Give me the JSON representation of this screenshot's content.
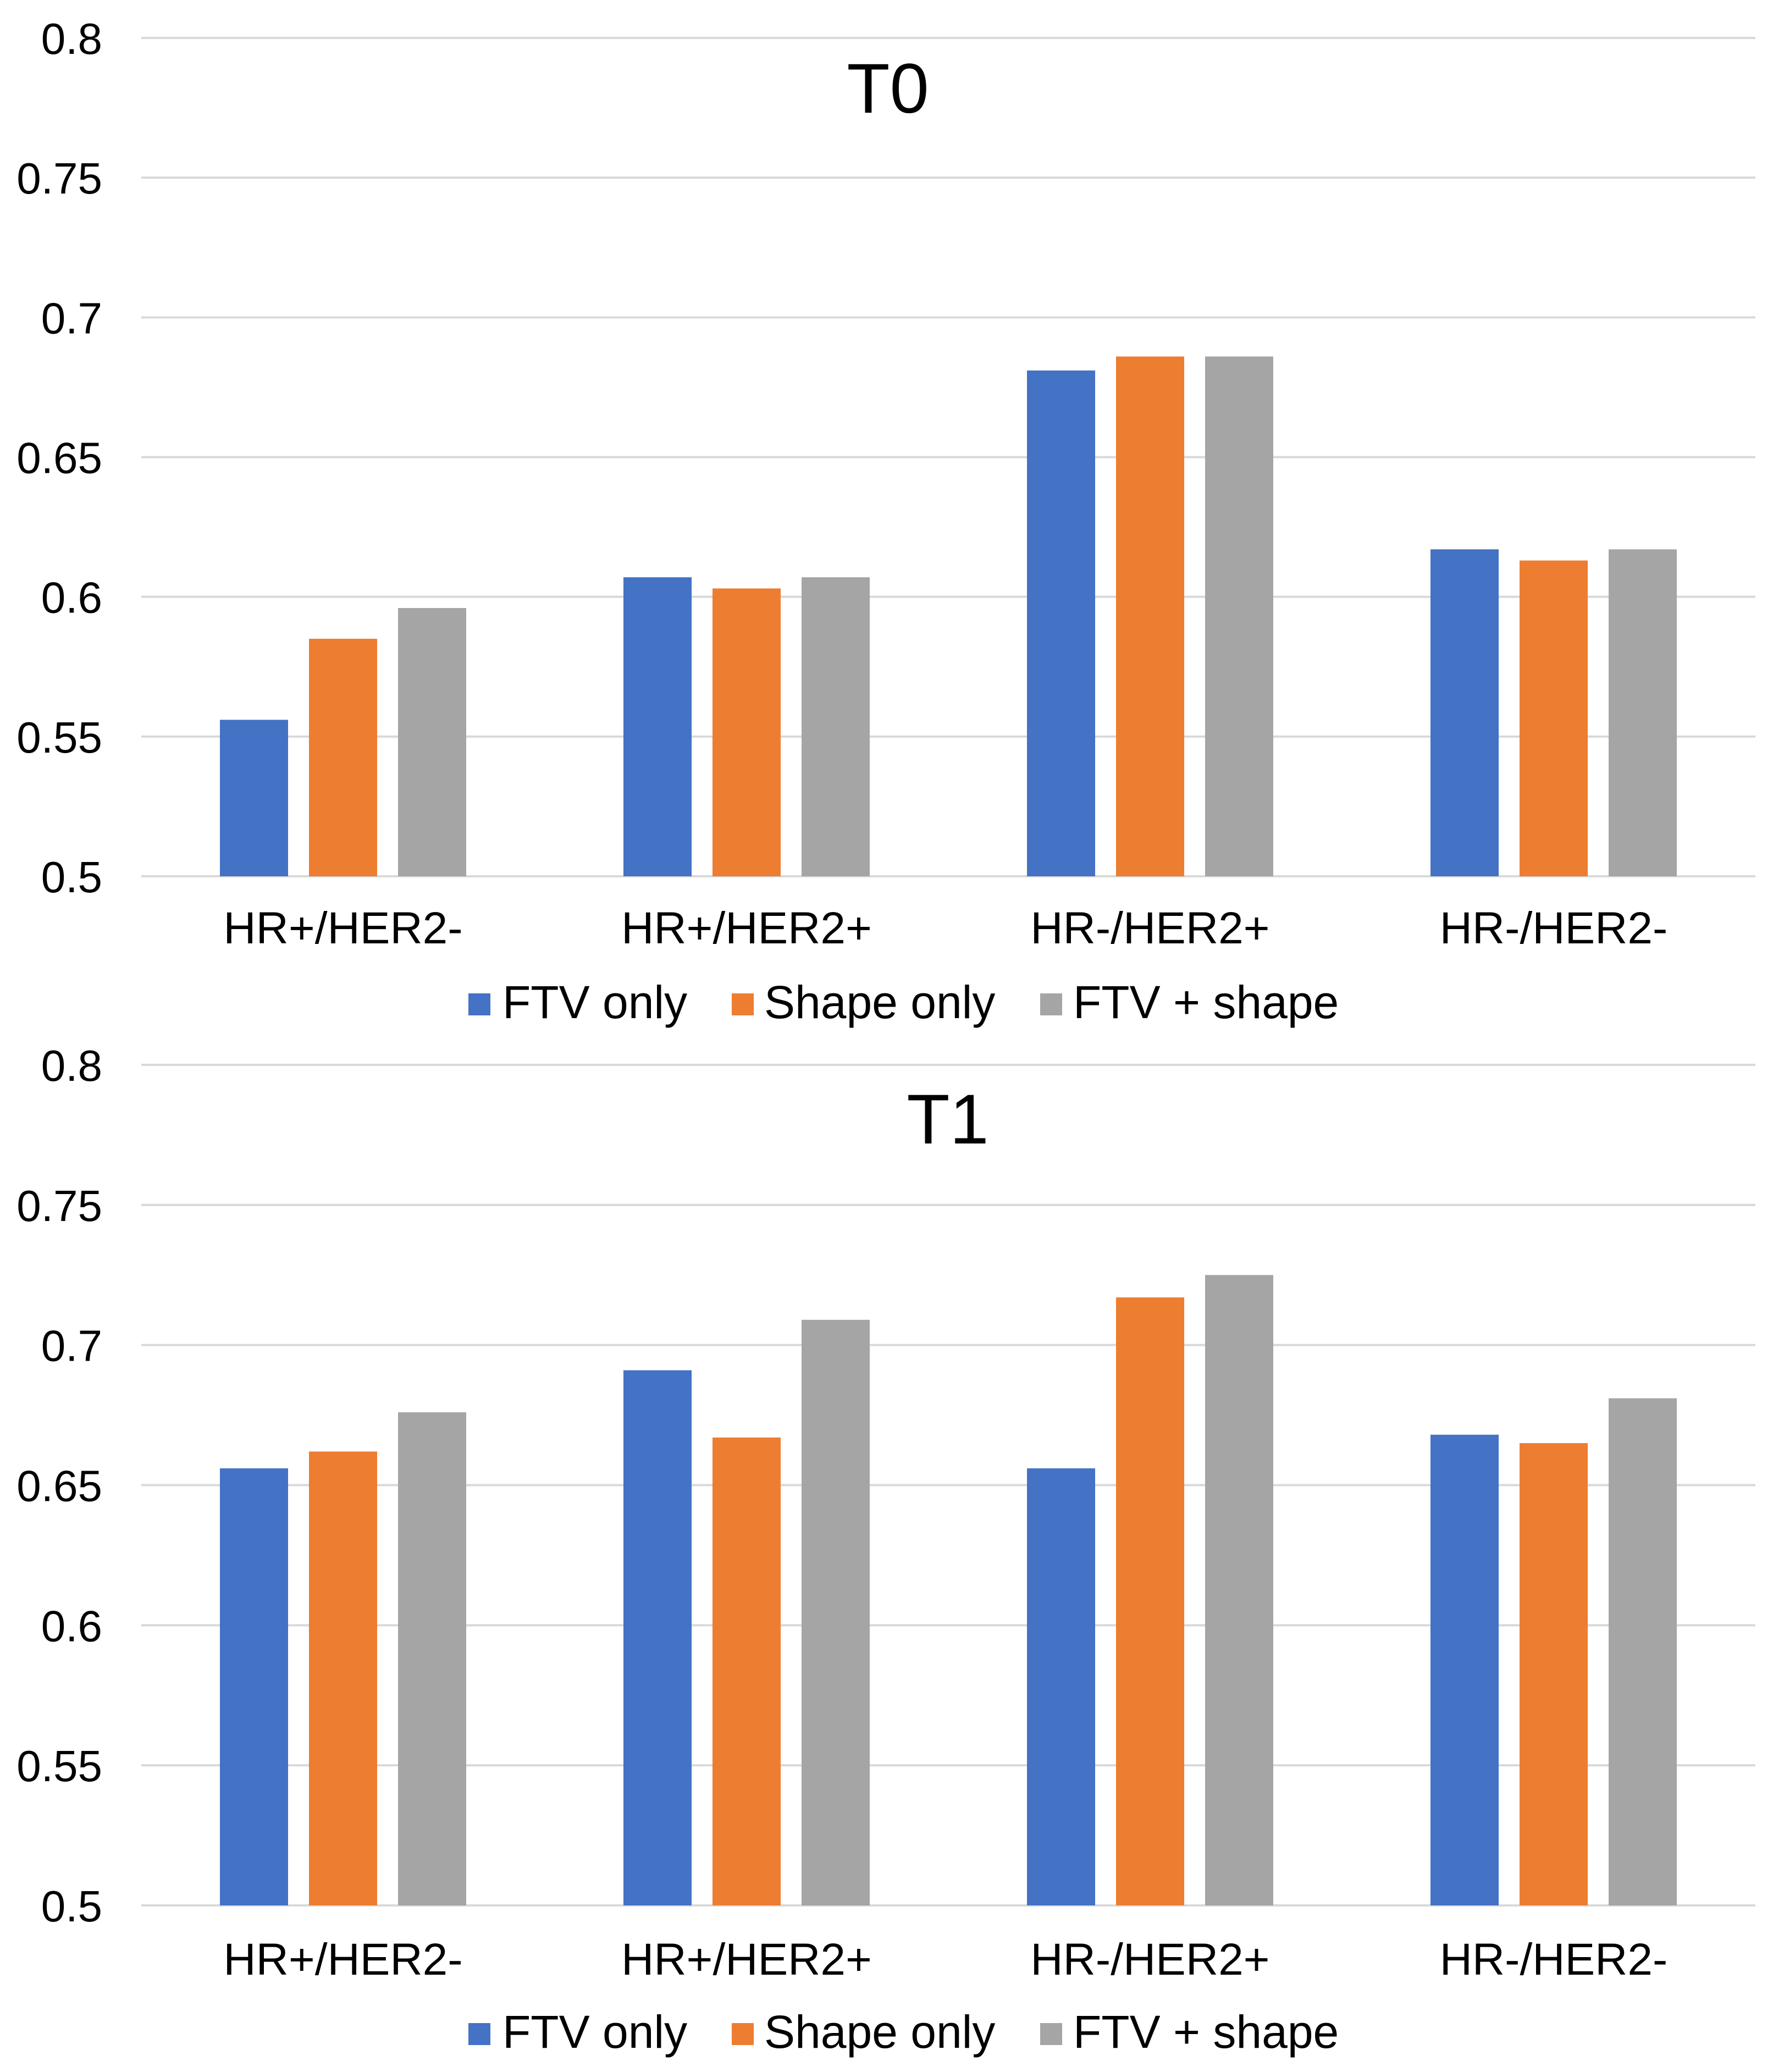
{
  "chart_data": [
    {
      "type": "bar",
      "title": "T0",
      "xlabel": "",
      "ylabel": "",
      "ylim": [
        0.5,
        0.8
      ],
      "yticks": [
        "0.5",
        "0.55",
        "0.6",
        "0.65",
        "0.7",
        "0.75",
        "0.8"
      ],
      "grid": true,
      "legend_position": "bottom",
      "categories": [
        "HR+/HER2-",
        "HR+/HER2+",
        "HR-/HER2+",
        "HR-/HER2-"
      ],
      "series": [
        {
          "name": "FTV only",
          "color": "#4472c4",
          "values": [
            0.556,
            0.607,
            0.681,
            0.617
          ]
        },
        {
          "name": "Shape only",
          "color": "#ed7d31",
          "values": [
            0.585,
            0.603,
            0.686,
            0.613
          ]
        },
        {
          "name": "FTV + shape",
          "color": "#a5a5a5",
          "values": [
            0.596,
            0.607,
            0.686,
            0.617
          ]
        }
      ]
    },
    {
      "type": "bar",
      "title": "T1",
      "xlabel": "",
      "ylabel": "",
      "ylim": [
        0.5,
        0.8
      ],
      "yticks": [
        "0.5",
        "0.55",
        "0.6",
        "0.65",
        "0.7",
        "0.75",
        "0.8"
      ],
      "grid": true,
      "legend_position": "bottom",
      "categories": [
        "HR+/HER2-",
        "HR+/HER2+",
        "HR-/HER2+",
        "HR-/HER2-"
      ],
      "series": [
        {
          "name": "FTV only",
          "color": "#4472c4",
          "values": [
            0.656,
            0.691,
            0.656,
            0.668
          ]
        },
        {
          "name": "Shape only",
          "color": "#ed7d31",
          "values": [
            0.662,
            0.667,
            0.717,
            0.665
          ]
        },
        {
          "name": "FTV + shape",
          "color": "#a5a5a5",
          "values": [
            0.676,
            0.709,
            0.725,
            0.681
          ]
        }
      ]
    }
  ]
}
